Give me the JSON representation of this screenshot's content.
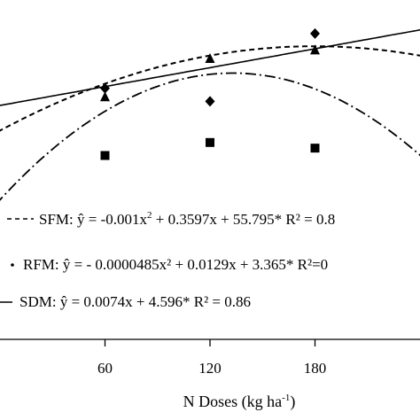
{
  "chart_data": {
    "type": "scatter",
    "xlabel": "N Doses (kg ha",
    "xlabel_sup": "-1",
    "xlabel_close": ")",
    "x_ticks": [
      "60",
      "120",
      "180"
    ],
    "x_tick_values": [
      60,
      120,
      180
    ],
    "xlim": [
      0,
      240
    ],
    "ylim": [
      0,
      120
    ],
    "grid": false,
    "legend_placement": "bottom-left",
    "series": [
      {
        "key": "SFM",
        "marker": "diamond",
        "line_style": "dashed",
        "x": [
          60,
          120,
          180
        ],
        "y": [
          72,
          67,
          93
        ],
        "fit": {
          "form": "quadratic",
          "a": -0.001,
          "b": 0.3597,
          "c": 55.795
        },
        "equation_parts": [
          "SFM: ŷ = -0.001x",
          "2",
          " + 0.3597x + 55.795*  R² = 0.8"
        ]
      },
      {
        "key": "RFM",
        "marker": "square",
        "line_style": "dash-dot",
        "x": [
          60,
          120,
          180
        ],
        "y": [
          3.665,
          3.753,
          3.715
        ],
        "fit": {
          "form": "quadratic",
          "a": -4.85e-05,
          "b": 0.0129,
          "c": 3.365
        },
        "equation_parts": [
          "RFM: ŷ = - 0.0000485x²  + 0.0129x + 3.365*  R²=0"
        ]
      },
      {
        "key": "SDM",
        "marker": "triangle",
        "line_style": "solid",
        "x": [
          60,
          120,
          180
        ],
        "y": [
          4.8,
          5.7,
          5.9
        ],
        "fit": {
          "form": "linear",
          "a": 0.0074,
          "b": 4.596
        },
        "equation_parts": [
          "SDM: ŷ = 0.0074x + 4.596*  R² = 0.86"
        ]
      }
    ]
  }
}
